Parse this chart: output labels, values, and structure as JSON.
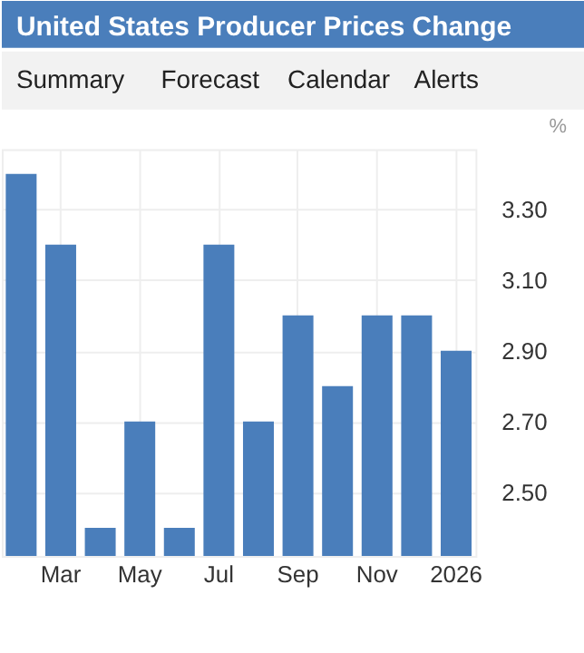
{
  "chart_data": {
    "type": "bar",
    "title": "United States Producer Prices Change",
    "annotations": [
      "Summary",
      "Forecast",
      "Calendar",
      "Alerts"
    ],
    "ylabel": "%",
    "categories": [
      null,
      "Mar",
      null,
      "May",
      null,
      "Jul",
      null,
      "Sep",
      null,
      "Nov",
      null,
      "2026"
    ],
    "series": [
      {
        "color": "#4a7ebb",
        "values": [
          3.4,
          3.2,
          2.4,
          2.7,
          2.4,
          3.2,
          2.7,
          3.0,
          2.8,
          3.0,
          3.0,
          2.9
        ]
      }
    ],
    "ylim": [
      2.32,
      3.47
    ],
    "yticks": [
      {
        "value": 2.5,
        "label": "2.50"
      },
      {
        "value": 2.7,
        "label": "2.70"
      },
      {
        "value": 2.9,
        "label": "2.90"
      },
      {
        "value": 3.1,
        "label": "3.10"
      },
      {
        "value": 3.3,
        "label": "3.30"
      }
    ],
    "grid": true
  }
}
